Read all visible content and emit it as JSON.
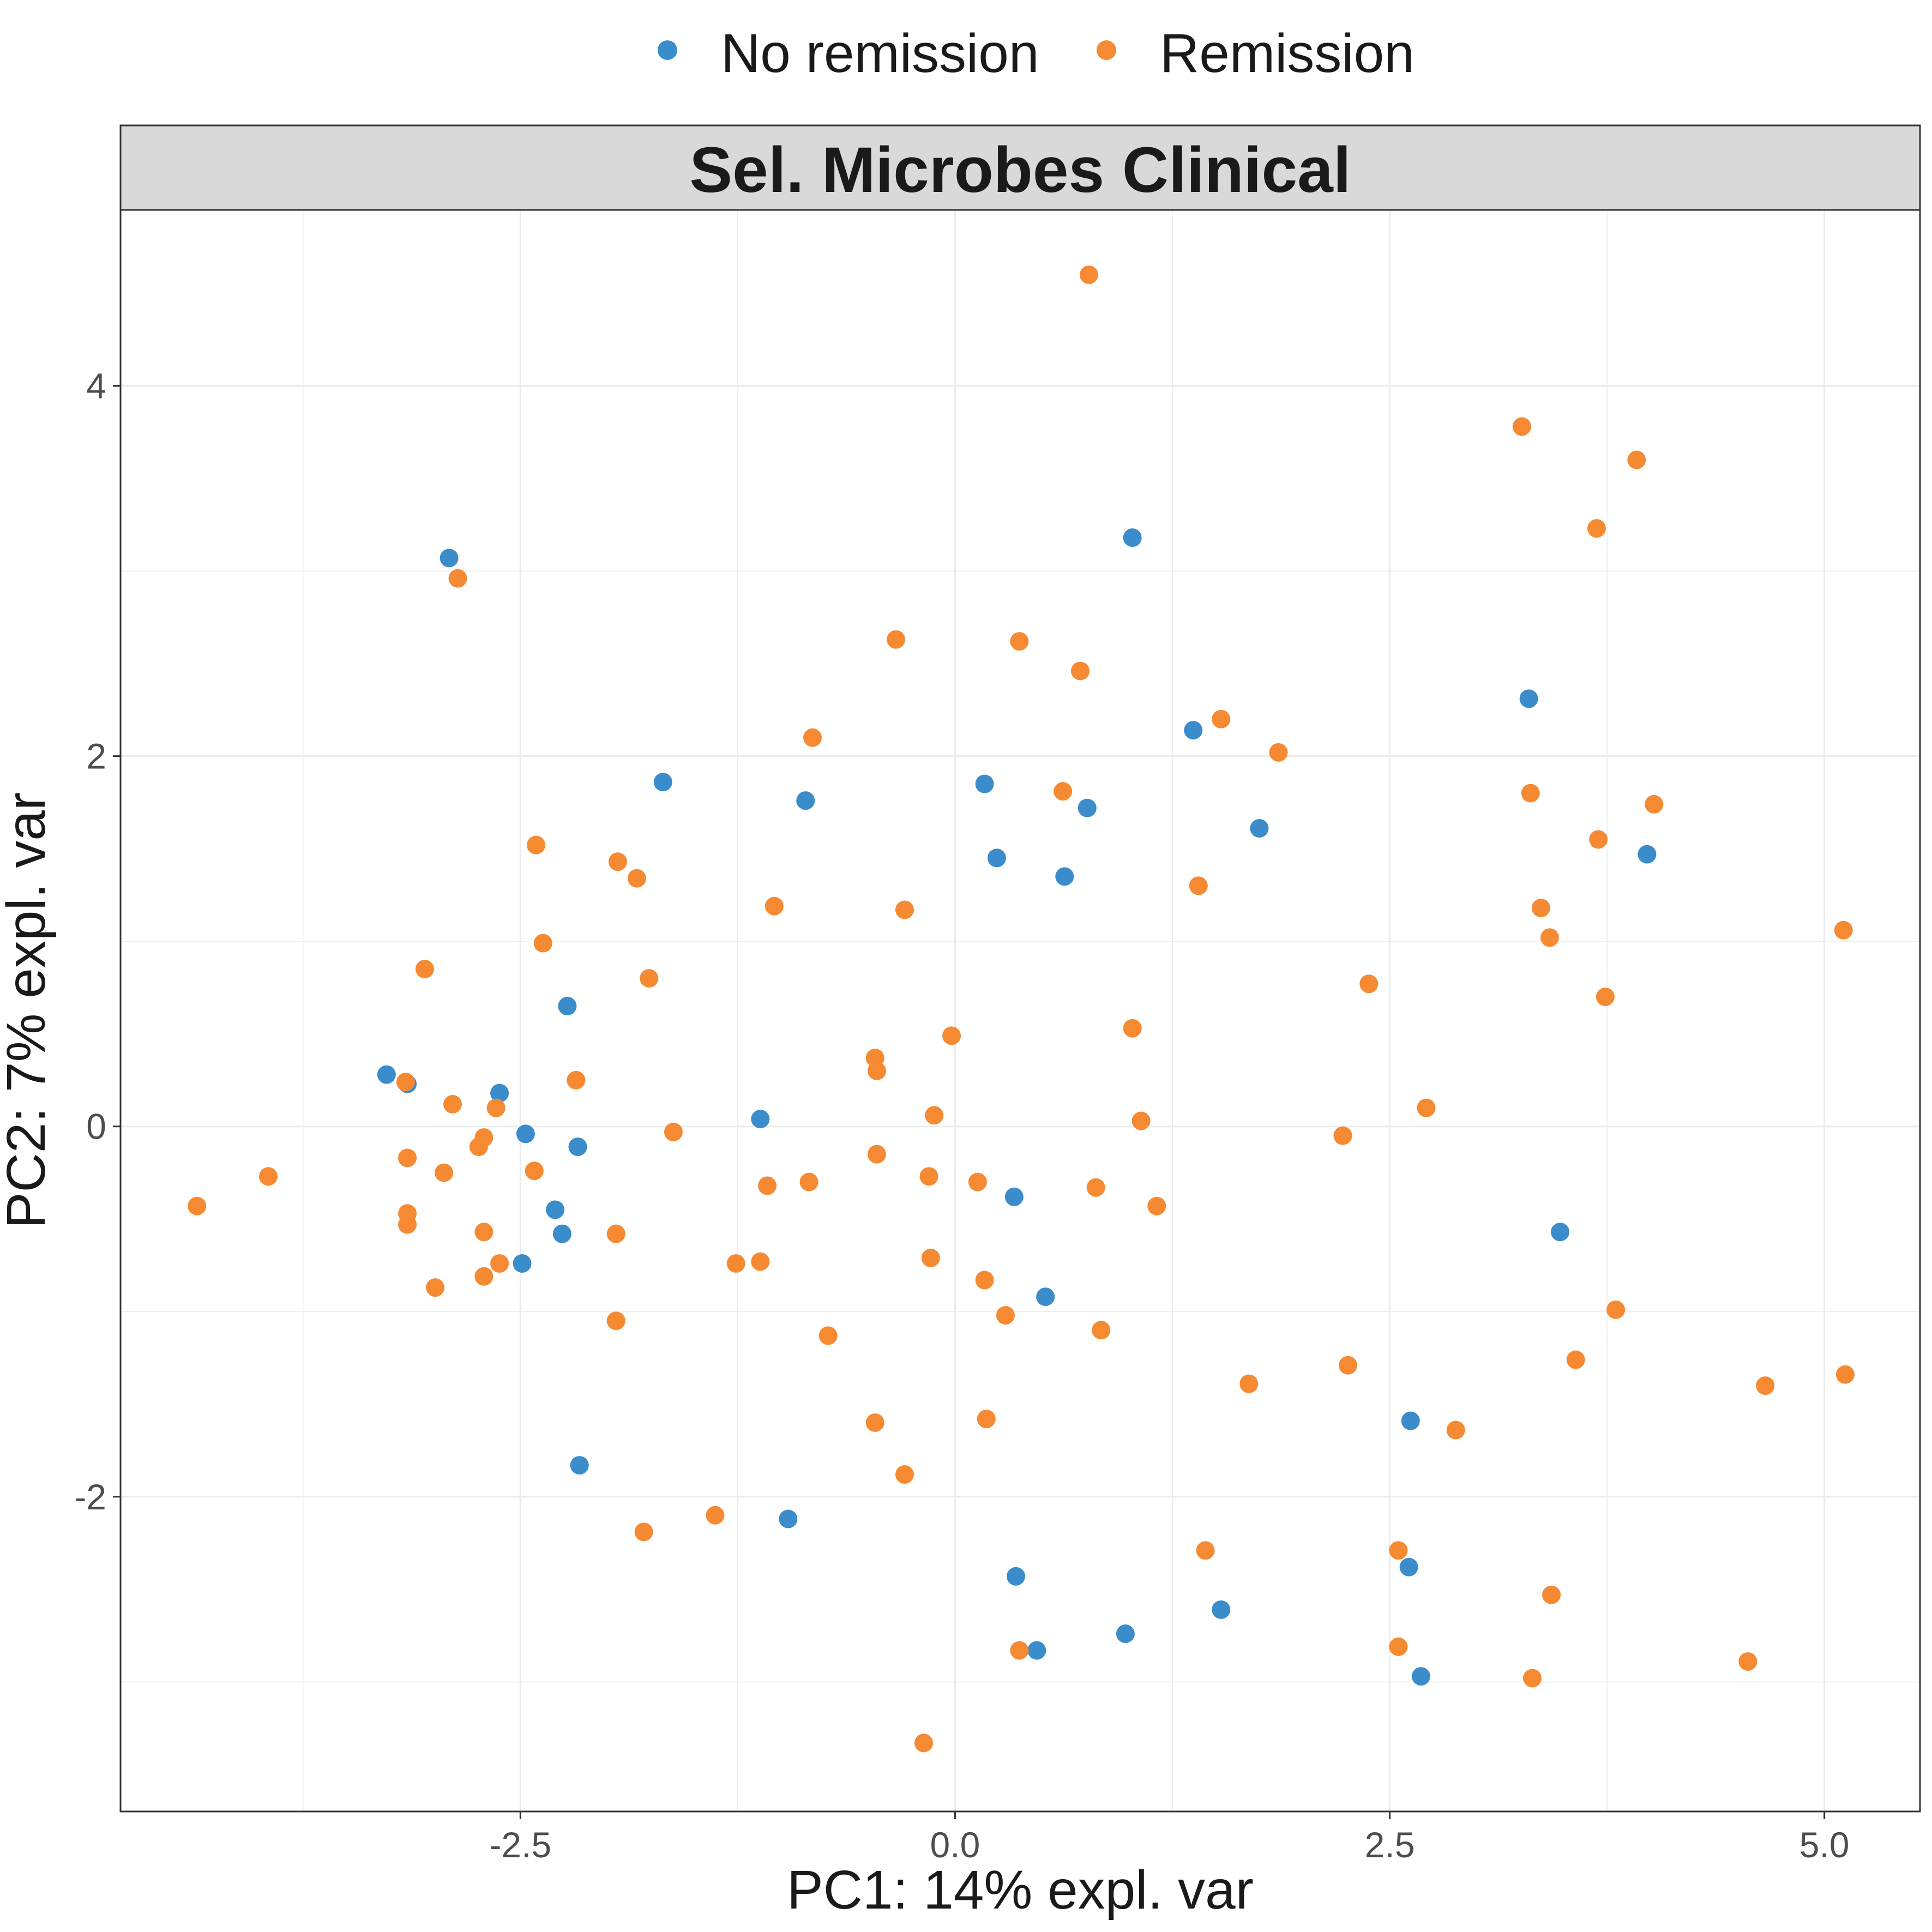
{
  "chart_data": {
    "type": "scatter",
    "title": "Sel. Microbes Clinical",
    "xlabel": "PC1: 14% expl. var",
    "ylabel": "PC2: 7% expl. var",
    "xlim": [
      -4.8,
      5.55
    ],
    "ylim": [
      -3.7,
      4.95
    ],
    "x_ticks": [
      -2.5,
      0.0,
      2.5,
      5.0
    ],
    "x_tick_labels": [
      "-2.5",
      "0.0",
      "2.5",
      "5.0"
    ],
    "y_ticks": [
      -2,
      0,
      2,
      4
    ],
    "y_tick_labels": [
      "-2",
      "0",
      "2",
      "4"
    ],
    "grid": true,
    "legend": {
      "position": "top",
      "entries": [
        "No remission",
        "Remission"
      ]
    },
    "series": [
      {
        "name": "No remission",
        "color": "#3A8CCB",
        "points": [
          [
            -3.27,
            0.28
          ],
          [
            -3.15,
            0.23
          ],
          [
            -2.91,
            3.07
          ],
          [
            -2.62,
            0.18
          ],
          [
            -2.47,
            -0.04
          ],
          [
            -2.49,
            -0.74
          ],
          [
            -2.3,
            -0.45
          ],
          [
            -2.26,
            -0.58
          ],
          [
            -2.23,
            0.65
          ],
          [
            -2.17,
            -0.11
          ],
          [
            -2.16,
            -1.83
          ],
          [
            -1.68,
            1.86
          ],
          [
            -1.12,
            0.04
          ],
          [
            -0.96,
            -2.12
          ],
          [
            -0.86,
            1.76
          ],
          [
            0.17,
            1.85
          ],
          [
            0.24,
            1.45
          ],
          [
            0.34,
            -0.38
          ],
          [
            0.35,
            -2.43
          ],
          [
            0.47,
            -2.83
          ],
          [
            0.52,
            -0.92
          ],
          [
            0.63,
            1.35
          ],
          [
            0.76,
            1.72
          ],
          [
            0.98,
            -2.74
          ],
          [
            1.02,
            3.18
          ],
          [
            1.37,
            2.14
          ],
          [
            1.53,
            -2.61
          ],
          [
            1.75,
            1.61
          ],
          [
            2.62,
            -1.59
          ],
          [
            2.61,
            -2.38
          ],
          [
            2.68,
            -2.97
          ],
          [
            3.3,
            2.31
          ],
          [
            3.48,
            -0.57
          ],
          [
            3.98,
            1.47
          ]
        ]
      },
      {
        "name": "Remission",
        "color": "#F58A33",
        "points": [
          [
            -4.36,
            -0.43
          ],
          [
            -3.95,
            -0.27
          ],
          [
            -3.15,
            -0.47
          ],
          [
            -3.15,
            -0.17
          ],
          [
            -3.16,
            0.24
          ],
          [
            -3.15,
            -0.53
          ],
          [
            -3.05,
            0.85
          ],
          [
            -2.99,
            -0.87
          ],
          [
            -2.94,
            -0.25
          ],
          [
            -2.89,
            0.12
          ],
          [
            -2.86,
            2.96
          ],
          [
            -2.74,
            -0.11
          ],
          [
            -2.71,
            -0.06
          ],
          [
            -2.71,
            -0.57
          ],
          [
            -2.71,
            -0.81
          ],
          [
            -2.64,
            0.1
          ],
          [
            -2.62,
            -0.74
          ],
          [
            -2.42,
            -0.24
          ],
          [
            -2.41,
            1.52
          ],
          [
            -2.37,
            0.99
          ],
          [
            -2.18,
            0.25
          ],
          [
            -1.95,
            -0.58
          ],
          [
            -1.95,
            -1.05
          ],
          [
            -1.94,
            1.43
          ],
          [
            -1.83,
            1.34
          ],
          [
            -1.79,
            -2.19
          ],
          [
            -1.76,
            0.8
          ],
          [
            -1.62,
            -0.03
          ],
          [
            -1.38,
            -2.1
          ],
          [
            -1.26,
            -0.74
          ],
          [
            -1.12,
            -0.73
          ],
          [
            -1.08,
            -0.32
          ],
          [
            -1.04,
            1.19
          ],
          [
            -0.84,
            -0.3
          ],
          [
            -0.82,
            2.1
          ],
          [
            -0.73,
            -1.13
          ],
          [
            -0.46,
            0.37
          ],
          [
            -0.45,
            0.3
          ],
          [
            -0.45,
            -0.15
          ],
          [
            -0.46,
            -1.6
          ],
          [
            -0.34,
            2.63
          ],
          [
            -0.29,
            1.17
          ],
          [
            -0.29,
            -1.88
          ],
          [
            -0.18,
            -3.33
          ],
          [
            -0.15,
            -0.27
          ],
          [
            -0.14,
            -0.71
          ],
          [
            -0.12,
            0.06
          ],
          [
            -0.02,
            0.49
          ],
          [
            0.13,
            -0.3
          ],
          [
            0.17,
            -0.83
          ],
          [
            0.18,
            -1.58
          ],
          [
            0.29,
            -1.02
          ],
          [
            0.37,
            2.62
          ],
          [
            0.37,
            -2.83
          ],
          [
            0.62,
            1.81
          ],
          [
            0.72,
            2.46
          ],
          [
            0.77,
            4.6
          ],
          [
            0.81,
            -0.33
          ],
          [
            0.84,
            -1.1
          ],
          [
            1.02,
            0.53
          ],
          [
            1.07,
            0.03
          ],
          [
            1.16,
            -0.43
          ],
          [
            1.4,
            1.3
          ],
          [
            1.44,
            -2.29
          ],
          [
            1.53,
            2.2
          ],
          [
            1.69,
            -1.39
          ],
          [
            1.86,
            2.02
          ],
          [
            2.23,
            -0.05
          ],
          [
            2.26,
            -1.29
          ],
          [
            2.38,
            0.77
          ],
          [
            2.55,
            -2.29
          ],
          [
            2.55,
            -2.81
          ],
          [
            2.71,
            0.1
          ],
          [
            2.88,
            -1.64
          ],
          [
            3.26,
            3.78
          ],
          [
            3.31,
            1.8
          ],
          [
            3.32,
            -2.98
          ],
          [
            3.37,
            1.18
          ],
          [
            3.42,
            1.02
          ],
          [
            3.43,
            -2.53
          ],
          [
            3.57,
            -1.26
          ],
          [
            3.69,
            3.23
          ],
          [
            3.7,
            1.55
          ],
          [
            3.74,
            0.7
          ],
          [
            3.8,
            -0.99
          ],
          [
            3.92,
            3.6
          ],
          [
            4.02,
            1.74
          ],
          [
            4.56,
            -2.89
          ],
          [
            4.66,
            -1.4
          ],
          [
            5.11,
            1.06
          ],
          [
            5.12,
            -1.34
          ]
        ]
      }
    ]
  }
}
